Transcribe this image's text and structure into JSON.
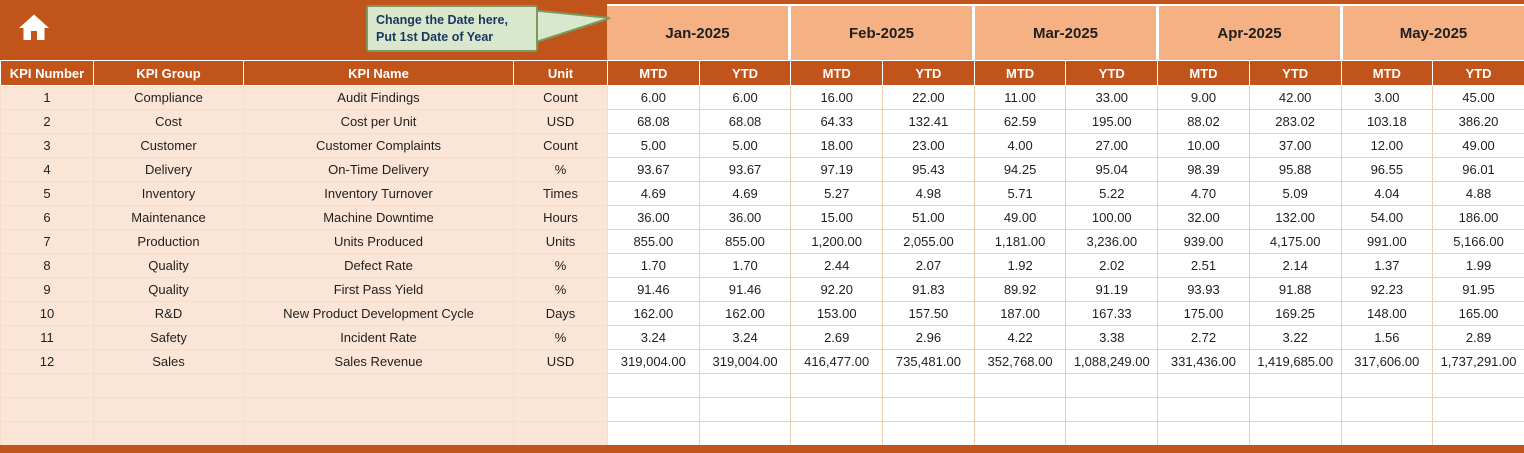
{
  "colors": {
    "header_dark": "#C0541B",
    "month_light": "#F5B183",
    "row_peach": "#FBE5D6",
    "grid_line": "#F3CDAB",
    "callout_fill": "#D9E8CC",
    "callout_border": "#7B9A63",
    "callout_text": "#17375E"
  },
  "icons": {
    "home": "home-icon"
  },
  "callout": {
    "line1": "Change the Date here,",
    "line2": "Put 1st Date of Year"
  },
  "months": [
    "Jan-2025",
    "Feb-2025",
    "Mar-2025",
    "Apr-2025",
    "May-2025"
  ],
  "subheaders": {
    "mtd": "MTD",
    "ytd": "YTD"
  },
  "headers": [
    "KPI Number",
    "KPI Group",
    "KPI Name",
    "Unit"
  ],
  "rows": [
    {
      "number": "1",
      "group": "Compliance",
      "name": "Audit Findings",
      "unit": "Count",
      "values": [
        "6.00",
        "6.00",
        "16.00",
        "22.00",
        "11.00",
        "33.00",
        "9.00",
        "42.00",
        "3.00",
        "45.00"
      ]
    },
    {
      "number": "2",
      "group": "Cost",
      "name": "Cost per Unit",
      "unit": "USD",
      "values": [
        "68.08",
        "68.08",
        "64.33",
        "132.41",
        "62.59",
        "195.00",
        "88.02",
        "283.02",
        "103.18",
        "386.20"
      ]
    },
    {
      "number": "3",
      "group": "Customer",
      "name": "Customer Complaints",
      "unit": "Count",
      "values": [
        "5.00",
        "5.00",
        "18.00",
        "23.00",
        "4.00",
        "27.00",
        "10.00",
        "37.00",
        "12.00",
        "49.00"
      ]
    },
    {
      "number": "4",
      "group": "Delivery",
      "name": "On-Time Delivery",
      "unit": "%",
      "values": [
        "93.67",
        "93.67",
        "97.19",
        "95.43",
        "94.25",
        "95.04",
        "98.39",
        "95.88",
        "96.55",
        "96.01"
      ]
    },
    {
      "number": "5",
      "group": "Inventory",
      "name": "Inventory Turnover",
      "unit": "Times",
      "values": [
        "4.69",
        "4.69",
        "5.27",
        "4.98",
        "5.71",
        "5.22",
        "4.70",
        "5.09",
        "4.04",
        "4.88"
      ]
    },
    {
      "number": "6",
      "group": "Maintenance",
      "name": "Machine Downtime",
      "unit": "Hours",
      "values": [
        "36.00",
        "36.00",
        "15.00",
        "51.00",
        "49.00",
        "100.00",
        "32.00",
        "132.00",
        "54.00",
        "186.00"
      ]
    },
    {
      "number": "7",
      "group": "Production",
      "name": "Units Produced",
      "unit": "Units",
      "values": [
        "855.00",
        "855.00",
        "1,200.00",
        "2,055.00",
        "1,181.00",
        "3,236.00",
        "939.00",
        "4,175.00",
        "991.00",
        "5,166.00"
      ]
    },
    {
      "number": "8",
      "group": "Quality",
      "name": "Defect Rate",
      "unit": "%",
      "values": [
        "1.70",
        "1.70",
        "2.44",
        "2.07",
        "1.92",
        "2.02",
        "2.51",
        "2.14",
        "1.37",
        "1.99"
      ]
    },
    {
      "number": "9",
      "group": "Quality",
      "name": "First Pass Yield",
      "unit": "%",
      "values": [
        "91.46",
        "91.46",
        "92.20",
        "91.83",
        "89.92",
        "91.19",
        "93.93",
        "91.88",
        "92.23",
        "91.95"
      ]
    },
    {
      "number": "10",
      "group": "R&D",
      "name": "New Product Development Cycle",
      "unit": "Days",
      "values": [
        "162.00",
        "162.00",
        "153.00",
        "157.50",
        "187.00",
        "167.33",
        "175.00",
        "169.25",
        "148.00",
        "165.00"
      ]
    },
    {
      "number": "11",
      "group": "Safety",
      "name": "Incident Rate",
      "unit": "%",
      "values": [
        "3.24",
        "3.24",
        "2.69",
        "2.96",
        "4.22",
        "3.38",
        "2.72",
        "3.22",
        "1.56",
        "2.89"
      ]
    },
    {
      "number": "12",
      "group": "Sales",
      "name": "Sales Revenue",
      "unit": "USD",
      "values": [
        "319,004.00",
        "319,004.00",
        "416,477.00",
        "735,481.00",
        "352,768.00",
        "1,088,249.00",
        "331,436.00",
        "1,419,685.00",
        "317,606.00",
        "1,737,291.00"
      ]
    }
  ],
  "empty_row_count": 3
}
